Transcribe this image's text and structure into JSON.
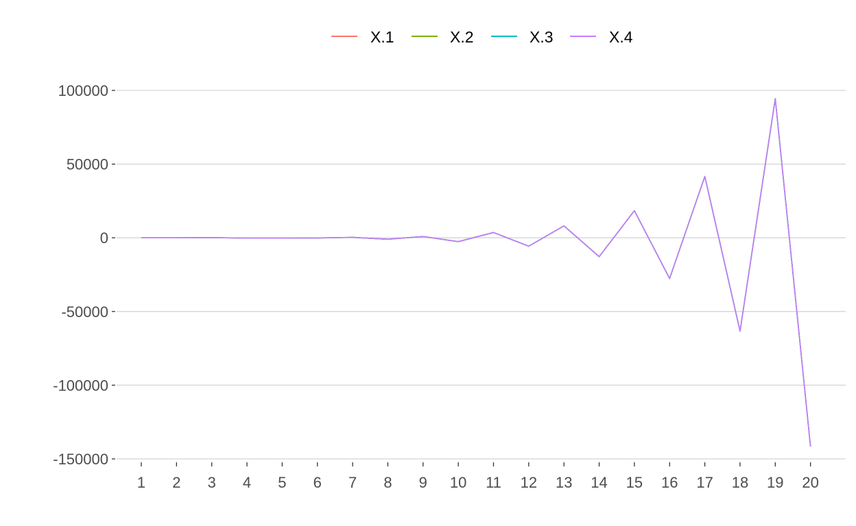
{
  "chart_data": {
    "type": "line",
    "title": "",
    "xlabel": "",
    "ylabel": "",
    "x": [
      1,
      2,
      3,
      4,
      5,
      6,
      7,
      8,
      9,
      10,
      11,
      12,
      13,
      14,
      15,
      16,
      17,
      18,
      19,
      20
    ],
    "x_tick_labels": [
      "1",
      "2",
      "3",
      "4",
      "5",
      "6",
      "7",
      "8",
      "9",
      "10",
      "11",
      "12",
      "13",
      "14",
      "15",
      "16",
      "17",
      "18",
      "19",
      "20"
    ],
    "y_ticks": [
      100000,
      50000,
      0,
      -50000,
      -100000,
      -150000
    ],
    "y_tick_labels": [
      "100000",
      "50000",
      "0",
      "-50000",
      "-100000",
      "-150000"
    ],
    "ylim": [
      -150000,
      100000
    ],
    "grid": "horizontal",
    "legend_position": "top",
    "series": [
      {
        "name": "X.1",
        "color": "#F8766D",
        "values": [
          0,
          0,
          100,
          -200,
          -200,
          -100,
          300,
          -1000,
          900,
          -2600,
          3600,
          -5700,
          8100,
          -12800,
          18400,
          -27600,
          41600,
          -63300,
          94400,
          -141600
        ]
      },
      {
        "name": "X.2",
        "color": "#7CAE00",
        "values": [
          0,
          0,
          100,
          -200,
          -200,
          -100,
          300,
          -1000,
          900,
          -2600,
          3600,
          -5700,
          8100,
          -12800,
          18400,
          -27600,
          41600,
          -63300,
          94400,
          -141600
        ]
      },
      {
        "name": "X.3",
        "color": "#00BFC4",
        "values": [
          0,
          0,
          100,
          -200,
          -200,
          -100,
          300,
          -1000,
          900,
          -2600,
          3600,
          -5700,
          8100,
          -12800,
          18400,
          -27600,
          41600,
          -63300,
          94400,
          -141600
        ]
      },
      {
        "name": "X.4",
        "color": "#C77CFF",
        "values": [
          0,
          0,
          100,
          -200,
          -200,
          -100,
          300,
          -1000,
          900,
          -2600,
          3600,
          -5700,
          8100,
          -12800,
          18400,
          -27600,
          41600,
          -63300,
          94400,
          -141600
        ]
      }
    ]
  }
}
